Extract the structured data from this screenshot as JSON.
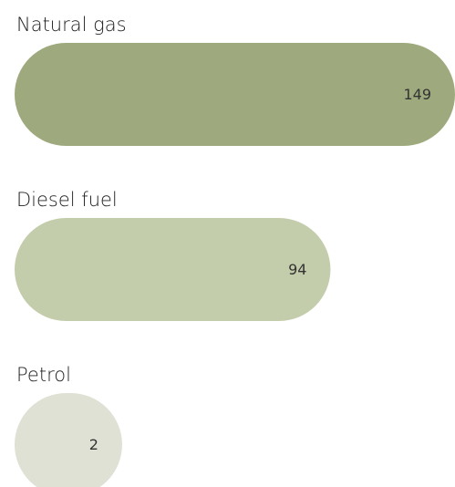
{
  "chart_data": {
    "type": "bar",
    "orientation": "horizontal",
    "categories": [
      "Natural gas",
      "Diesel fuel",
      "Petrol"
    ],
    "values": [
      149,
      94,
      2
    ],
    "colors": [
      "#9eaa7e",
      "#c4cdab",
      "#dfe1d5"
    ]
  }
}
